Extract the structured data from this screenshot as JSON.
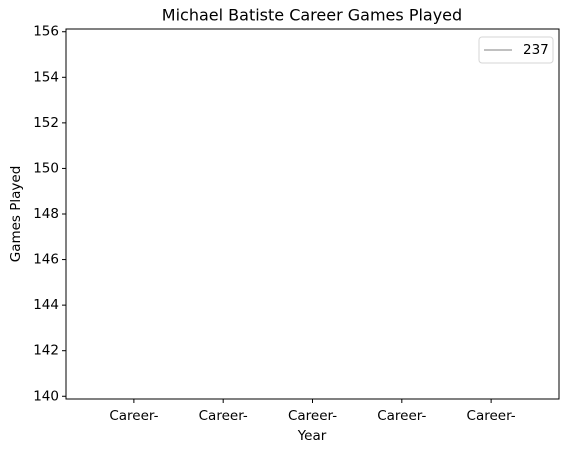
{
  "chart_data": {
    "type": "line",
    "title": "Michael Batiste Career Games Played",
    "xlabel": "Year",
    "ylabel": "Games Played",
    "categories": [
      "Career-",
      "Career-",
      "Career-",
      "Career-",
      "Career-"
    ],
    "series": [
      {
        "name": "237",
        "color": "#c0c0c0",
        "values": [
          null,
          null,
          null,
          null,
          null
        ]
      }
    ],
    "ylim": [
      139.88,
      156.12
    ],
    "yticks": [
      140,
      142,
      144,
      146,
      148,
      150,
      152,
      154,
      156
    ],
    "legend": "upper right"
  }
}
